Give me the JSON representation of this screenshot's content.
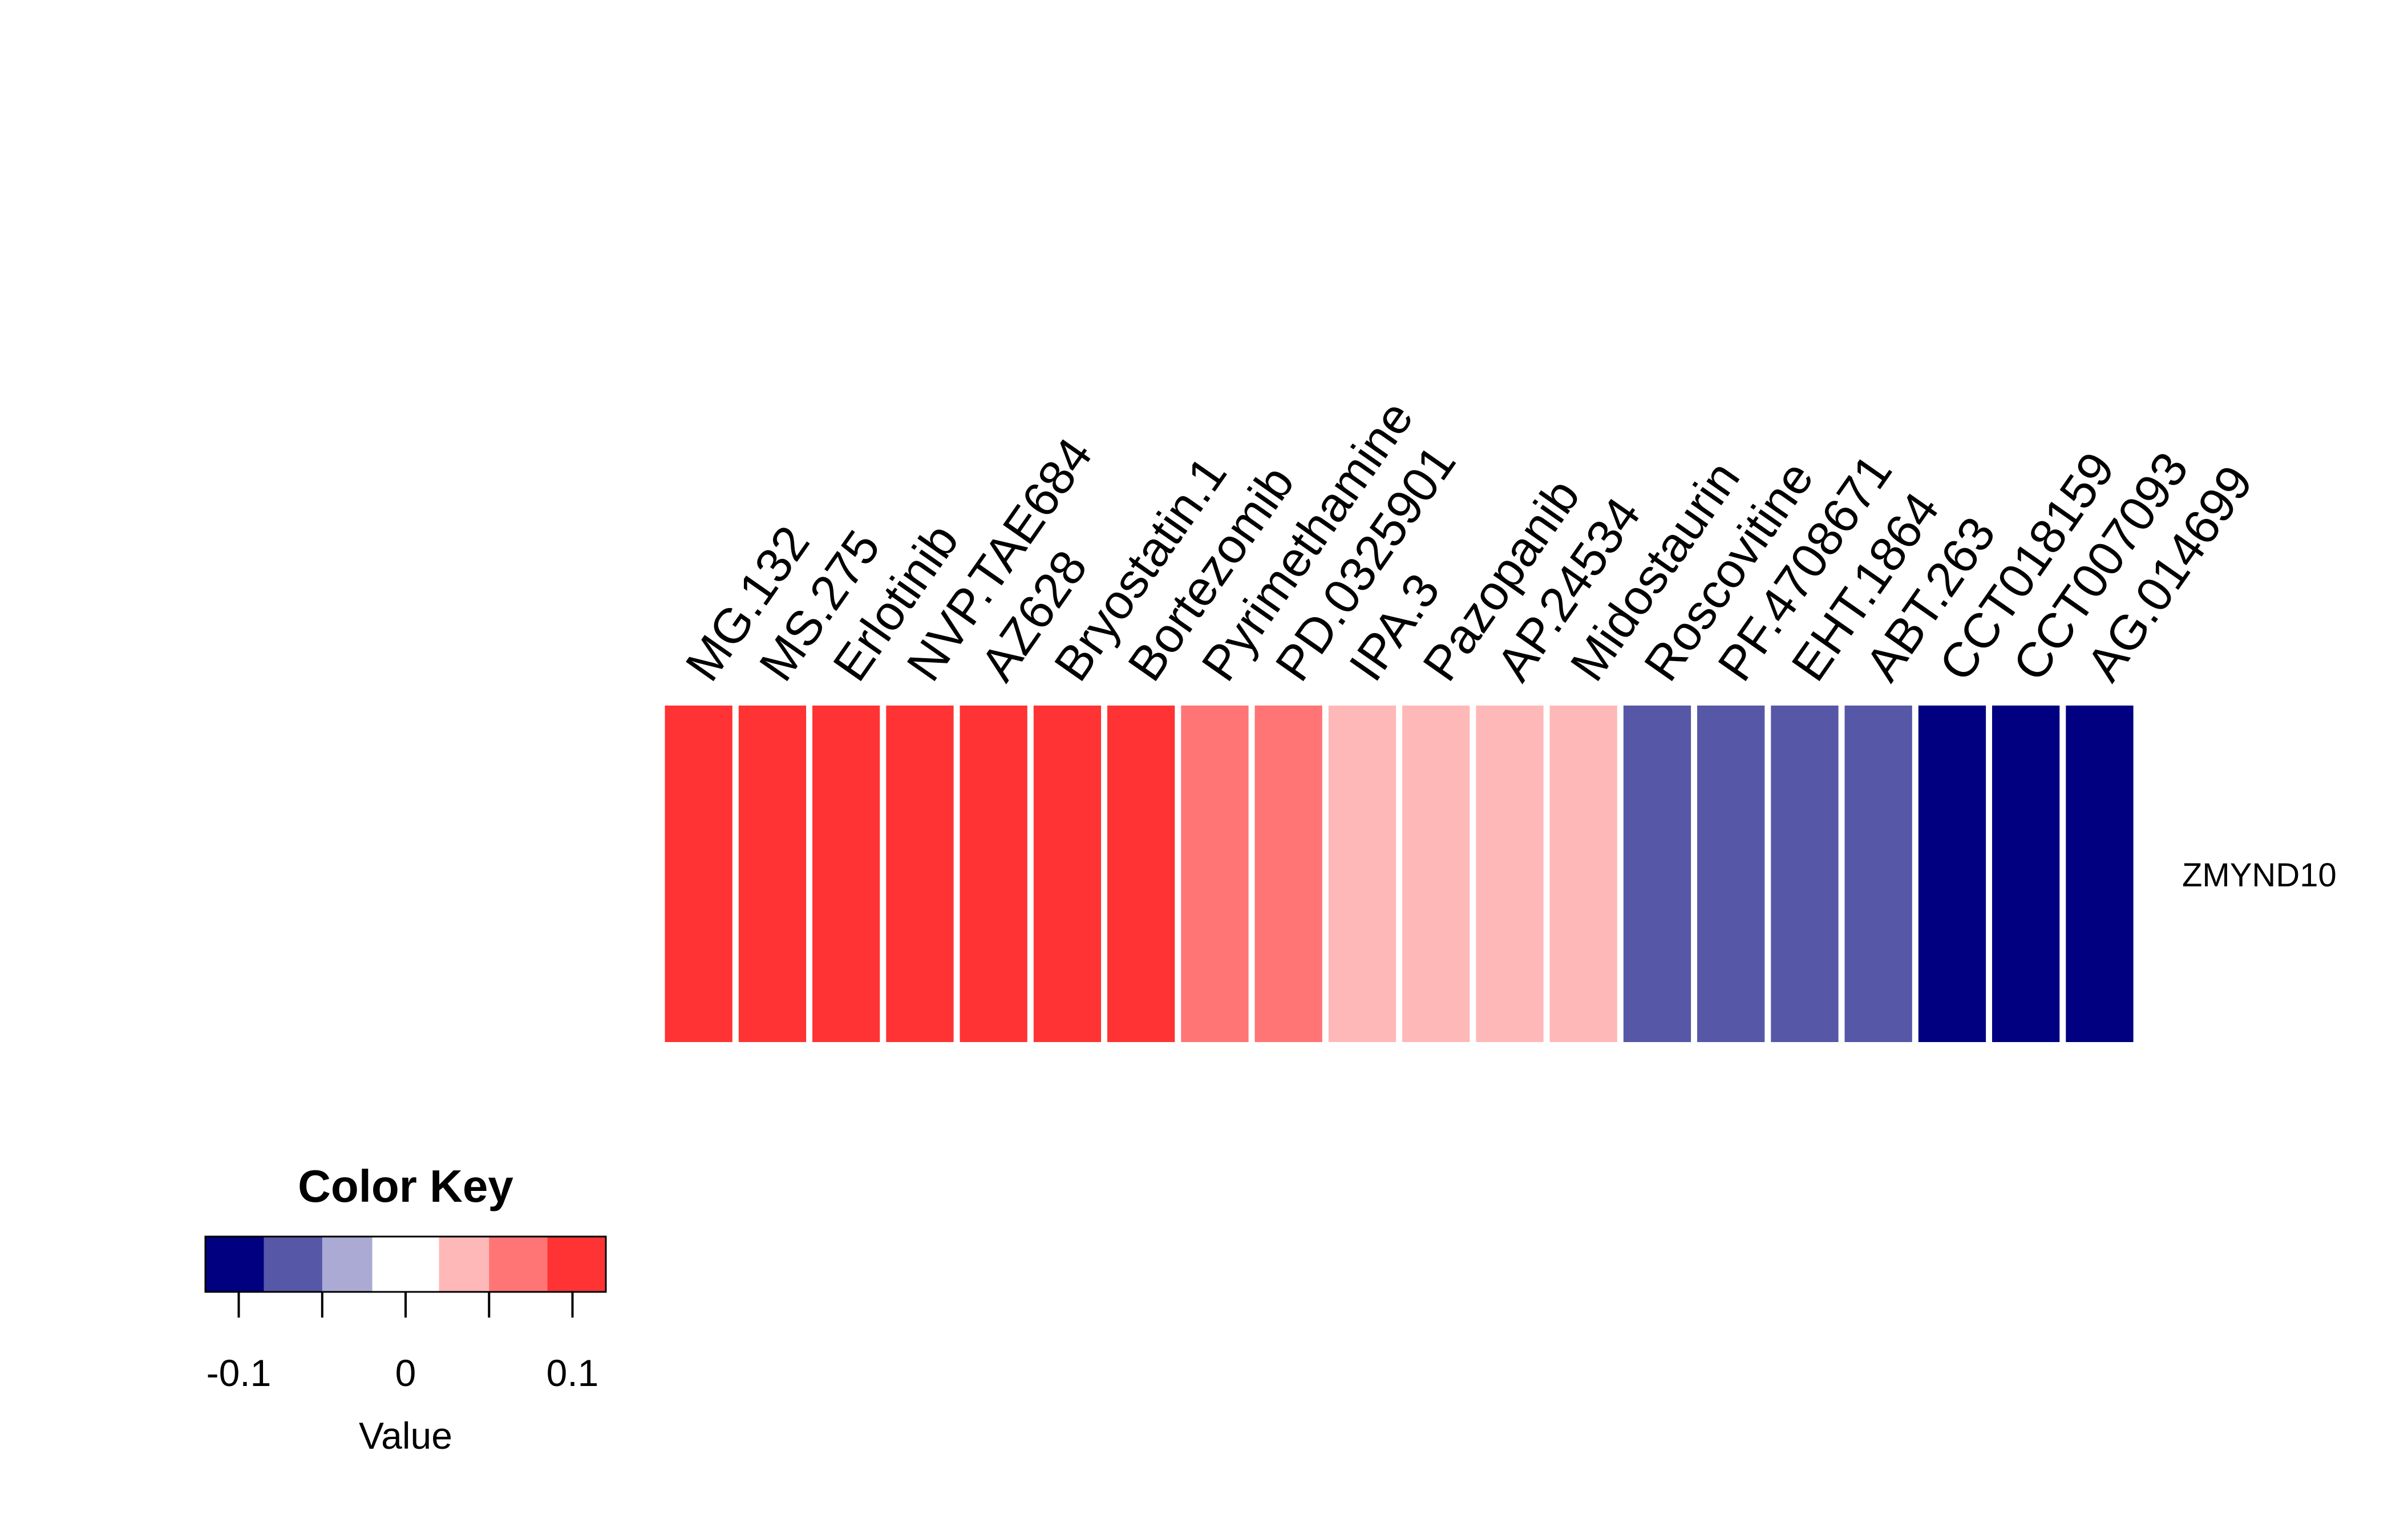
{
  "chart_data": {
    "type": "heatmap",
    "columns": [
      "MG.132",
      "MS.275",
      "Erlotinib",
      "NVP.TAE684",
      "AZ628",
      "Bryostatin.1",
      "Bortezomib",
      "Pyrimethamine",
      "PD.0325901",
      "IPA.3",
      "Pazopanib",
      "AP.24534",
      "Midostaurin",
      "Roscovitine",
      "PF.4708671",
      "EHT.1864",
      "ABT.263",
      "CCT018159",
      "CCT007093",
      "AG.014699"
    ],
    "rows": [
      "ZMYND10"
    ],
    "values": [
      [
        0.11,
        0.11,
        0.11,
        0.11,
        0.11,
        0.11,
        0.11,
        0.065,
        0.065,
        0.035,
        0.035,
        0.035,
        0.035,
        -0.065,
        -0.065,
        -0.065,
        -0.065,
        -0.11,
        -0.11,
        -0.11
      ]
    ],
    "color_key": {
      "title": "Color Key",
      "xlabel": "Value",
      "range": [
        -0.12,
        0.12
      ],
      "breaks": [
        -0.12,
        -0.085,
        -0.05,
        -0.02,
        0.02,
        0.05,
        0.085,
        0.12
      ],
      "colors": [
        "#000080",
        "#5757A8",
        "#AAAAD4",
        "#FFFFFF",
        "#FFB8B8",
        "#FF7575",
        "#FF3333"
      ],
      "ticks": [
        -0.1,
        -0.05,
        0,
        0.05,
        0.1
      ],
      "tick_labels": [
        "-0.1",
        "",
        "0",
        "",
        "0.1"
      ]
    }
  }
}
